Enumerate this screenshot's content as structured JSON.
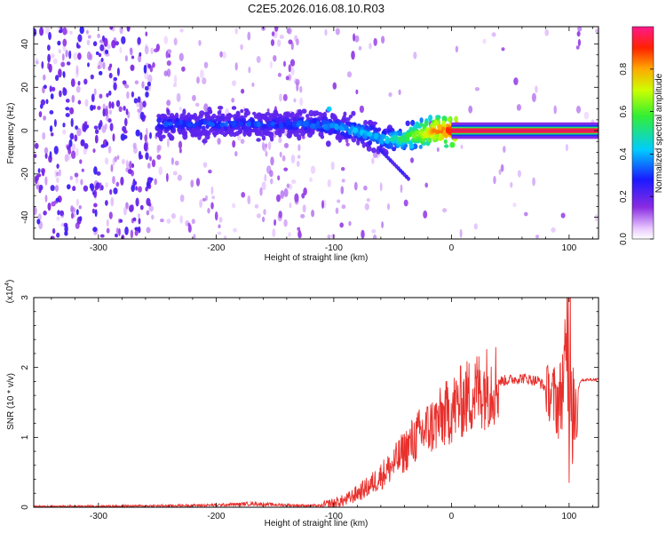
{
  "title": "C2E5.2026.016.08.10.R03",
  "spectrogram": {
    "xlabel": "Height of straight line (km)",
    "ylabel": "Frequency (Hz)",
    "xlim": [
      -355,
      125
    ],
    "ylim": [
      -50,
      48
    ],
    "xticks": [
      "-300",
      "-200",
      "-100",
      "0",
      "100"
    ],
    "yticks": [
      "-40",
      "-20",
      "0",
      "20",
      "40"
    ],
    "colorbar": {
      "label": "Normalized spectral amplitude",
      "range": [
        0,
        1
      ],
      "ticks": [
        "0.0",
        "0.2",
        "0.4",
        "0.6",
        "0.8"
      ]
    }
  },
  "snr": {
    "xlabel": "Height of straight line (km)",
    "ylabel": "SNR (10 * v/v)",
    "multiplier": "(x10",
    "multiplier_exp": "4",
    "multiplier_close": ")",
    "xlim": [
      -355,
      125
    ],
    "ylim": [
      0,
      3
    ],
    "xticks": [
      "-300",
      "-200",
      "-100",
      "0",
      "100"
    ],
    "yticks": [
      "0",
      "1",
      "2",
      "3"
    ],
    "line_color": "#e8302c"
  },
  "chart_data": [
    {
      "type": "heatmap",
      "title": "C2E5.2026.016.08.10.R03",
      "xlabel": "Height of straight line (km)",
      "ylabel": "Frequency (Hz)",
      "xlim": [
        -355,
        125
      ],
      "ylim": [
        -50,
        48
      ],
      "zlabel": "Normalized spectral amplitude",
      "zlim": [
        0,
        1
      ],
      "ridge": {
        "x": [
          -250,
          -200,
          -150,
          -120,
          -100,
          -80,
          -60,
          -45,
          -30,
          -15,
          0,
          50,
          105
        ],
        "freq": [
          3,
          3,
          3,
          3,
          2,
          0,
          -4,
          -4,
          -2,
          0,
          0,
          0,
          0
        ],
        "amplitude": [
          0.35,
          0.35,
          0.35,
          0.38,
          0.4,
          0.45,
          0.45,
          0.55,
          0.7,
          0.85,
          0.95,
          0.95,
          0.95
        ]
      }
    },
    {
      "type": "line",
      "xlabel": "Height of straight line (km)",
      "ylabel": "SNR (10 * v/v)",
      "xlim": [
        -355,
        125
      ],
      "ylim": [
        0,
        3
      ],
      "y_multiplier": 10000,
      "series": [
        {
          "name": "SNR",
          "x": [
            -355,
            -250,
            -200,
            -170,
            -140,
            -110,
            -90,
            -70,
            -50,
            -30,
            -10,
            0,
            20,
            40,
            60,
            75,
            85,
            92,
            98,
            102,
            106,
            110,
            125
          ],
          "y": [
            0.01,
            0.02,
            0.03,
            0.05,
            0.03,
            0.02,
            0.1,
            0.3,
            0.6,
            1.0,
            1.25,
            1.4,
            1.65,
            1.8,
            1.85,
            1.8,
            1.6,
            1.5,
            2.2,
            1.3,
            1.6,
            1.82,
            1.83
          ]
        }
      ]
    }
  ]
}
